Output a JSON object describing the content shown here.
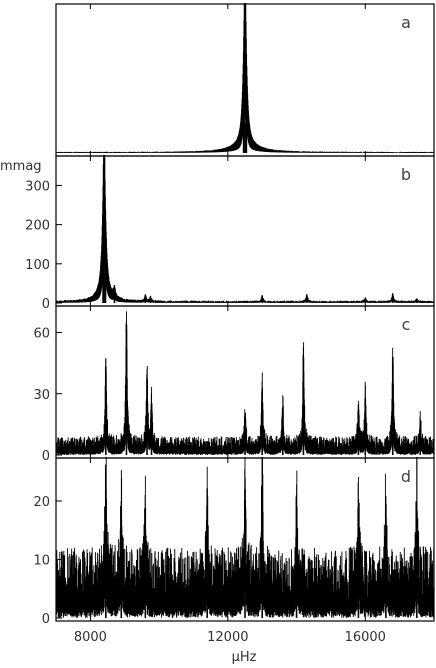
{
  "chart_data": {
    "type": "line",
    "xlabel": "μHz",
    "ylabel": "mmag",
    "xlim": [
      7000,
      18000
    ],
    "x_ticks": [
      8000,
      12000,
      16000
    ],
    "x_tick_labels": [
      "8000",
      "12000",
      "16000"
    ],
    "panels": [
      {
        "label": "a",
        "ylim": [
          0,
          1
        ],
        "y_ticks": [],
        "y_tick_labels": [],
        "noise_level": 0.005,
        "peaks": [
          {
            "x": 12500,
            "y": 1.0,
            "width": 35
          },
          {
            "x": 12460,
            "y": 0.22,
            "width": 60
          },
          {
            "x": 12540,
            "y": 0.2,
            "width": 60
          },
          {
            "x": 12500,
            "y": 0.05,
            "width": 500
          }
        ]
      },
      {
        "label": "b",
        "ylim": [
          0,
          370
        ],
        "y_ticks": [
          0,
          100,
          200,
          300
        ],
        "y_tick_labels": [
          "0",
          "100",
          "200",
          "300"
        ],
        "noise_level": 4,
        "peaks": [
          {
            "x": 8400,
            "y": 350,
            "width": 30
          },
          {
            "x": 8370,
            "y": 90,
            "width": 60
          },
          {
            "x": 8440,
            "y": 75,
            "width": 60
          },
          {
            "x": 8400,
            "y": 20,
            "width": 250
          },
          {
            "x": 8700,
            "y": 25,
            "width": 30
          },
          {
            "x": 9600,
            "y": 15,
            "width": 30
          },
          {
            "x": 9750,
            "y": 12,
            "width": 30
          },
          {
            "x": 13000,
            "y": 15,
            "width": 30
          },
          {
            "x": 14300,
            "y": 18,
            "width": 30
          },
          {
            "x": 16000,
            "y": 10,
            "width": 30
          },
          {
            "x": 16800,
            "y": 20,
            "width": 30
          },
          {
            "x": 17500,
            "y": 8,
            "width": 30
          }
        ]
      },
      {
        "label": "c",
        "ylim": [
          0,
          72
        ],
        "y_ticks": [
          0,
          30,
          60
        ],
        "y_tick_labels": [
          "0",
          "30",
          "60"
        ],
        "noise_level": 6,
        "peaks": [
          {
            "x": 8450,
            "y": 43,
            "width": 25
          },
          {
            "x": 9050,
            "y": 64,
            "width": 25
          },
          {
            "x": 9650,
            "y": 37,
            "width": 25
          },
          {
            "x": 9780,
            "y": 25,
            "width": 25
          },
          {
            "x": 12500,
            "y": 18,
            "width": 25
          },
          {
            "x": 13000,
            "y": 32,
            "width": 25
          },
          {
            "x": 13600,
            "y": 22,
            "width": 25
          },
          {
            "x": 14200,
            "y": 48,
            "width": 25
          },
          {
            "x": 15800,
            "y": 20,
            "width": 25
          },
          {
            "x": 16000,
            "y": 28,
            "width": 25
          },
          {
            "x": 16800,
            "y": 48,
            "width": 25
          },
          {
            "x": 17600,
            "y": 15,
            "width": 25
          }
        ]
      },
      {
        "label": "d",
        "ylim": [
          0,
          27
        ],
        "y_ticks": [
          0,
          10,
          20
        ],
        "y_tick_labels": [
          "0",
          "10",
          "20"
        ],
        "noise_level": 8,
        "peaks": [
          {
            "x": 8450,
            "y": 22,
            "width": 25
          },
          {
            "x": 8900,
            "y": 17,
            "width": 25
          },
          {
            "x": 9600,
            "y": 15,
            "width": 25
          },
          {
            "x": 11400,
            "y": 15,
            "width": 25
          },
          {
            "x": 12500,
            "y": 22,
            "width": 25
          },
          {
            "x": 13000,
            "y": 20,
            "width": 25
          },
          {
            "x": 14000,
            "y": 15,
            "width": 25
          },
          {
            "x": 15800,
            "y": 16,
            "width": 25
          },
          {
            "x": 16600,
            "y": 17,
            "width": 25
          },
          {
            "x": 17500,
            "y": 18,
            "width": 25
          }
        ]
      }
    ]
  }
}
